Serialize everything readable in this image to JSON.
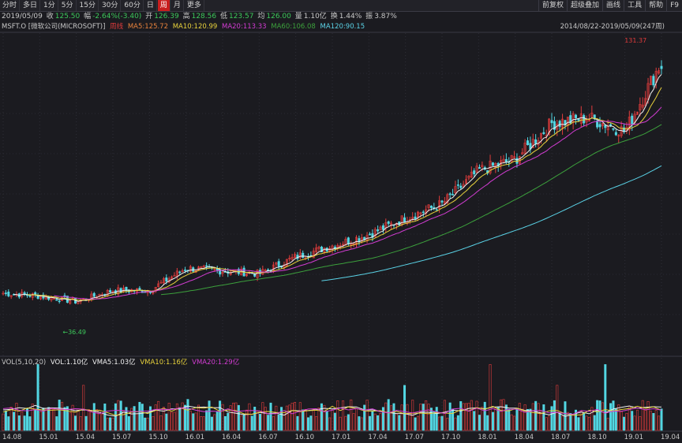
{
  "toolbar": {
    "tabs": [
      "分时",
      "多日",
      "1分",
      "5分",
      "15分",
      "30分",
      "60分",
      "日",
      "周",
      "月",
      "更多"
    ],
    "active": "周",
    "right": [
      "前复权",
      "超级叠加",
      "画线",
      "工具",
      "帮助",
      "F9"
    ]
  },
  "info": {
    "date": "2019/05/09",
    "close_label": "收",
    "close": "125.50",
    "chg_label": "幅",
    "chg": "-2.64%(-3.40)",
    "open_label": "开",
    "open": "126.39",
    "high_label": "高",
    "high": "128.56",
    "low_label": "低",
    "low": "123.57",
    "avg_label": "均",
    "avg": "126.00",
    "vol_label": "量",
    "vol": "1.10亿",
    "turn_label": "换",
    "turn": "1.44%",
    "amp_label": "振",
    "amp": "3.87%"
  },
  "ma": {
    "symbol": "MSFT.O [微软公司(MICROSOFT)]",
    "tag": "周线",
    "ma5": "MA5:125.72",
    "ma10": "MA10:120.99",
    "ma20": "MA20:113.33",
    "ma60": "MA60:106.08",
    "ma120": "MA120:90.15",
    "range": "2014/08/22-2019/05/09(247周)"
  },
  "annotations": {
    "high": "131.37",
    "low": "36.49"
  },
  "volume": {
    "label": "VOL(5,10,20)",
    "vol": "VOL:1.10亿",
    "vma5": "VMA5:1.03亿",
    "vma10": "VMA10:1.16亿",
    "vma20": "VMA20:1.29亿"
  },
  "x_labels": [
    "14.08",
    "15.01",
    "15.04",
    "15.07",
    "15.10",
    "16.01",
    "16.04",
    "16.07",
    "16.10",
    "17.01",
    "17.04",
    "17.07",
    "17.10",
    "18.01",
    "18.04",
    "18.07",
    "18.10",
    "19.01",
    "19.04"
  ],
  "colors": {
    "up": "#e03c3c",
    "down": "#52d6e2",
    "ma5": "#f0f0f0",
    "ma10": "#e8d23c",
    "ma20": "#d23cd2",
    "ma60": "#3ca03c",
    "ma120": "#5ad2e6",
    "bg": "#1b1b20"
  },
  "chart_data": {
    "type": "candlestick",
    "x_labels": [
      "14.08",
      "15.01",
      "15.04",
      "15.07",
      "15.10",
      "16.01",
      "16.04",
      "16.07",
      "16.10",
      "17.01",
      "17.04",
      "17.07",
      "17.10",
      "18.01",
      "18.04",
      "18.07",
      "18.10",
      "19.01",
      "19.04"
    ],
    "price_anchors": [
      {
        "x": "14.08",
        "y": 45
      },
      {
        "x": "15.01",
        "y": 44
      },
      {
        "x": "15.04",
        "y": 42
      },
      {
        "x": "15.07",
        "y": 46
      },
      {
        "x": "15.10",
        "y": 46
      },
      {
        "x": "16.01",
        "y": 54
      },
      {
        "x": "16.04",
        "y": 53
      },
      {
        "x": "16.07",
        "y": 52
      },
      {
        "x": "16.10",
        "y": 58
      },
      {
        "x": "17.01",
        "y": 62
      },
      {
        "x": "17.04",
        "y": 66
      },
      {
        "x": "17.07",
        "y": 72
      },
      {
        "x": "17.10",
        "y": 77
      },
      {
        "x": "18.01",
        "y": 89
      },
      {
        "x": "18.04",
        "y": 93
      },
      {
        "x": "18.07",
        "y": 106
      },
      {
        "x": "18.10",
        "y": 108
      },
      {
        "x": "19.01",
        "y": 103
      },
      {
        "x": "19.04",
        "y": 128
      }
    ],
    "last": {
      "open": 126.39,
      "high": 128.56,
      "low": 123.57,
      "close": 125.5
    },
    "period_high": 131.37,
    "period_low": 36.49
  }
}
